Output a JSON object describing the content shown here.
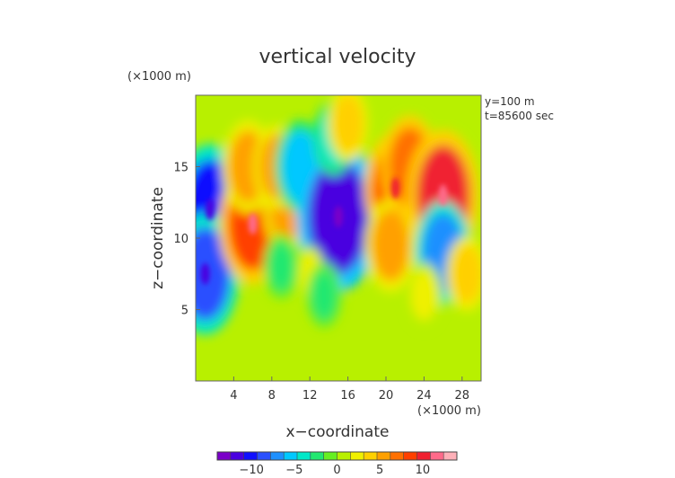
{
  "chart_data": {
    "type": "heatmap",
    "title": "vertical velocity",
    "xlabel": "x−coordinate",
    "ylabel": "z−coordinate",
    "x_unit_label": "(×1000 m)",
    "y_unit_label": "(×1000 m)",
    "annotations": [
      "y=100 m",
      "t=85600 sec"
    ],
    "xlim": [
      0,
      30
    ],
    "ylim": [
      0,
      20
    ],
    "x_ticks": [
      4,
      8,
      12,
      16,
      20,
      24,
      28
    ],
    "y_ticks": [
      5,
      10,
      15
    ],
    "colorbar": {
      "range": [
        -14,
        14
      ],
      "ticks": [
        -10,
        -5,
        0,
        5,
        10
      ],
      "colors": [
        "#7a00c8",
        "#4a00e0",
        "#1010ff",
        "#2a50ff",
        "#1e90ff",
        "#00c8ff",
        "#00e8c8",
        "#22e870",
        "#66ef22",
        "#b8f000",
        "#f0f000",
        "#ffd000",
        "#ffa000",
        "#ff7000",
        "#ff4000",
        "#f02030",
        "#ff6a8a",
        "#ffb0b8"
      ]
    },
    "field_features": [
      {
        "x": 1.5,
        "z": 12.0,
        "value": -10
      },
      {
        "x": 1.0,
        "z": 7.5,
        "value": -9
      },
      {
        "x": 6.0,
        "z": 11.0,
        "value": 9
      },
      {
        "x": 5.5,
        "z": 15.0,
        "value": 6
      },
      {
        "x": 9.5,
        "z": 12.0,
        "value": 5
      },
      {
        "x": 8.5,
        "z": 15.0,
        "value": 5
      },
      {
        "x": 11.0,
        "z": 15.0,
        "value": -6
      },
      {
        "x": 15.0,
        "z": 11.5,
        "value": -12
      },
      {
        "x": 14.5,
        "z": 17.0,
        "value": -4
      },
      {
        "x": 16.0,
        "z": 18.0,
        "value": 4
      },
      {
        "x": 21.0,
        "z": 13.5,
        "value": 8
      },
      {
        "x": 20.5,
        "z": 9.5,
        "value": 6
      },
      {
        "x": 22.5,
        "z": 15.0,
        "value": 7
      },
      {
        "x": 26.0,
        "z": 13.0,
        "value": 10
      },
      {
        "x": 26.0,
        "z": 9.0,
        "value": -7
      },
      {
        "x": 28.5,
        "z": 7.5,
        "value": 4
      },
      {
        "x": 24.0,
        "z": 6.0,
        "value": 3
      },
      {
        "x": 12.0,
        "z": 7.5,
        "value": 2
      },
      {
        "x": 9.0,
        "z": 8.0,
        "value": -3
      },
      {
        "x": 13.5,
        "z": 6.0,
        "value": -3
      }
    ],
    "grid": false
  }
}
